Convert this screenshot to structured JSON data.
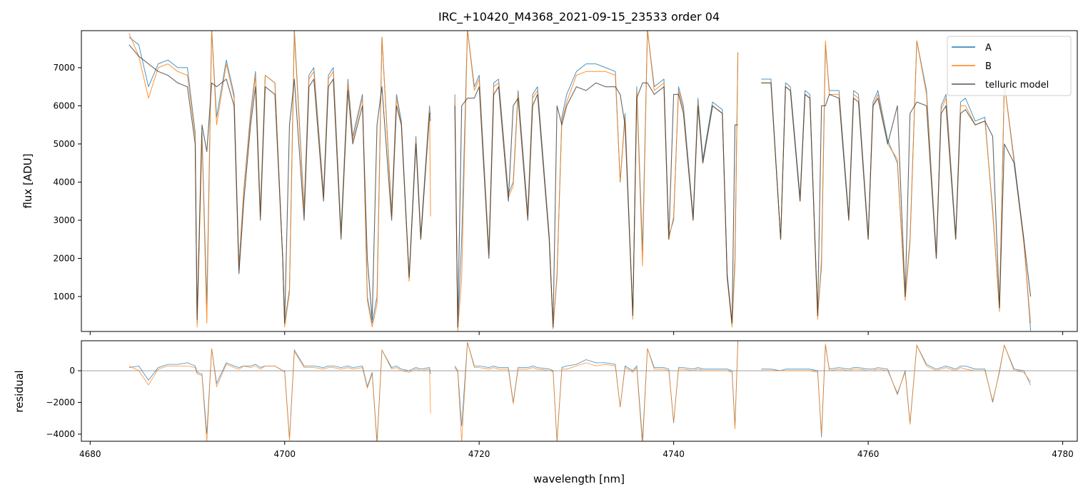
{
  "chart_data": [
    {
      "type": "line",
      "title": "IRC_+10420_M4368_2021-09-15_23533  order 04",
      "xlabel": "",
      "ylabel": "flux [ADU]",
      "xlim": [
        4679.1,
        4781.5
      ],
      "ylim": [
        84,
        7970
      ],
      "xticks": [
        4680,
        4700,
        4720,
        4740,
        4760,
        4780
      ],
      "yticks": [
        1000,
        2000,
        3000,
        4000,
        5000,
        6000,
        7000
      ],
      "grid": false,
      "legend_placement": "top-right",
      "x": [
        4684.0,
        4685.0,
        4686.0,
        4687.0,
        4688.0,
        4689.0,
        4690.0,
        4690.8,
        4691.0,
        4691.5,
        4692.0,
        4692.5,
        4693.0,
        4694.0,
        4694.8,
        4695.3,
        4695.8,
        4696.5,
        4697.0,
        4697.5,
        4698.0,
        4699.0,
        4699.8,
        4700.0,
        4700.5,
        4701.0,
        4702.0,
        4702.5,
        4703.0,
        4704.0,
        4704.5,
        4705.0,
        4705.8,
        4706.5,
        4707.0,
        4708.0,
        4708.5,
        4709.0,
        4709.5,
        4710.0,
        4711.0,
        4711.5,
        4712.0,
        4712.8,
        4713.5,
        4714.0,
        4714.9,
        4715.0,
        null,
        4717.5,
        4717.8,
        4718.2,
        4718.8,
        4719.5,
        4720.0,
        4721.0,
        4721.5,
        4722.0,
        4723.0,
        4723.5,
        4724.0,
        4725.0,
        4725.5,
        4726.0,
        4727.2,
        4727.6,
        4728.0,
        4728.5,
        4729.0,
        4730.0,
        4731.0,
        4732.0,
        4733.0,
        4734.0,
        4734.5,
        4735.0,
        4735.8,
        4736.2,
        4736.8,
        4737.3,
        4738.0,
        4739.0,
        4739.5,
        4740.0,
        4740.5,
        4741.0,
        4742.0,
        4742.5,
        4743.0,
        4744.0,
        4745.0,
        4745.5,
        4746.0,
        4746.3,
        4746.6,
        null,
        4749.0,
        4750.0,
        4751.0,
        4751.5,
        4752.0,
        4753.0,
        4753.5,
        4754.0,
        4754.8,
        4755.2,
        4755.6,
        4756.0,
        4757.0,
        4758.0,
        4758.5,
        4759.0,
        4760.0,
        4760.5,
        4761.0,
        4762.0,
        4763.0,
        4763.8,
        4764.3,
        4765.0,
        4766.0,
        4767.0,
        4767.5,
        4768.0,
        4769.0,
        4769.5,
        4770.0,
        4771.0,
        4772.0,
        4772.8,
        4773.5,
        4774.0,
        4775.0,
        4776.0,
        4776.7
      ],
      "series": [
        {
          "name": "A",
          "color": "#1f77b4",
          "values": [
            7800,
            7600,
            6500,
            7100,
            7200,
            7000,
            7000,
            5300,
            300,
            5300,
            800,
            8000,
            5700,
            7200,
            6300,
            1800,
            3800,
            5800,
            6900,
            3200,
            6800,
            6600,
            2000,
            300,
            1200,
            8000,
            3300,
            6800,
            7000,
            3700,
            6800,
            7000,
            2700,
            6700,
            5200,
            6300,
            1000,
            300,
            1000,
            7800,
            3200,
            6300,
            5600,
            1500,
            5200,
            2600,
            6000,
            5600,
            null,
            6300,
            200,
            2500,
            8000,
            6500,
            6800,
            2200,
            6600,
            6700,
            3700,
            4000,
            6400,
            3200,
            6300,
            6500,
            2600,
            200,
            1500,
            5700,
            6300,
            6900,
            7100,
            7100,
            7000,
            6900,
            4000,
            5800,
            500,
            6500,
            2200,
            8000,
            6500,
            6700,
            2600,
            3000,
            6500,
            6000,
            3100,
            6200,
            4600,
            6100,
            5900,
            1600,
            300,
            2000,
            7400,
            null,
            6700,
            6700,
            2500,
            6600,
            6500,
            3600,
            6400,
            6300,
            500,
            1800,
            7600,
            6400,
            6400,
            3100,
            6400,
            6300,
            2600,
            6100,
            6400,
            5100,
            4500,
            1000,
            2500,
            7700,
            6400,
            2100,
            6000,
            6300,
            2600,
            6100,
            6200,
            5600,
            5700,
            3200,
            700,
            6600,
            4600,
            2500,
            100
          ]
        },
        {
          "name": "B",
          "color": "#ff7f0e",
          "values": [
            7900,
            7300,
            6200,
            7000,
            7100,
            6900,
            6800,
            5200,
            200,
            5200,
            300,
            8000,
            5500,
            7100,
            6200,
            1700,
            3800,
            5700,
            6800,
            3100,
            6800,
            6600,
            2000,
            200,
            1100,
            7900,
            3200,
            6700,
            6900,
            3600,
            6700,
            6900,
            2600,
            6600,
            5100,
            6200,
            900,
            200,
            800,
            7800,
            3100,
            6200,
            5500,
            1400,
            5100,
            2500,
            5900,
            3100,
            null,
            6200,
            100,
            1500,
            8000,
            6400,
            6700,
            2100,
            6500,
            6600,
            3600,
            3900,
            6300,
            3100,
            6200,
            6400,
            2500,
            150,
            1600,
            5600,
            6100,
            6800,
            6900,
            6900,
            6900,
            6800,
            4000,
            5700,
            400,
            6400,
            1800,
            8000,
            6400,
            6600,
            2500,
            3100,
            6400,
            5900,
            3000,
            6100,
            4500,
            6000,
            5800,
            1500,
            200,
            1800,
            7400,
            null,
            6600,
            6600,
            2500,
            6500,
            6400,
            3500,
            6300,
            6200,
            400,
            2000,
            7700,
            6300,
            6300,
            3000,
            6300,
            6200,
            2500,
            6000,
            6300,
            5000,
            4600,
            900,
            2400,
            7700,
            6300,
            2000,
            5900,
            6200,
            2500,
            6000,
            6000,
            5500,
            5600,
            3300,
            600,
            6600,
            4500,
            2400,
            300
          ]
        },
        {
          "name": "telluric model",
          "color": "#333333",
          "values": [
            7600,
            7300,
            7100,
            6900,
            6800,
            6600,
            6500,
            5000,
            400,
            5500,
            4800,
            6600,
            6500,
            6700,
            6000,
            1600,
            3500,
            5500,
            6500,
            3000,
            6500,
            6300,
            2000,
            300,
            5500,
            6700,
            3000,
            6500,
            6700,
            3500,
            6500,
            6700,
            2500,
            6400,
            5000,
            6000,
            2000,
            400,
            5500,
            6500,
            3000,
            6000,
            5500,
            1500,
            5000,
            2500,
            5800,
            5800,
            null,
            6000,
            200,
            6000,
            6200,
            6200,
            6500,
            2000,
            6300,
            6500,
            3500,
            6000,
            6200,
            3000,
            6000,
            6300,
            2500,
            200,
            6000,
            5500,
            6000,
            6500,
            6400,
            6600,
            6500,
            6500,
            6300,
            5500,
            500,
            6200,
            6600,
            6600,
            6300,
            6500,
            2500,
            6300,
            6300,
            5800,
            3000,
            6000,
            4500,
            6000,
            5800,
            1500,
            300,
            5500,
            5500,
            null,
            6600,
            6600,
            2500,
            6500,
            6400,
            3500,
            6300,
            6200,
            500,
            6000,
            6000,
            6300,
            6200,
            3000,
            6200,
            6100,
            2500,
            6000,
            6200,
            5000,
            6000,
            1000,
            5800,
            6100,
            6000,
            2000,
            5800,
            6000,
            2500,
            5800,
            5900,
            5500,
            5600,
            5200,
            700,
            5000,
            4500,
            2500,
            1000
          ]
        }
      ],
      "legend": [
        "A",
        "B",
        "telluric model"
      ]
    },
    {
      "type": "line",
      "xlabel": "wavelength [nm]",
      "ylabel": "residual",
      "xlim": [
        4679.1,
        4781.5
      ],
      "ylim": [
        -4450,
        1890
      ],
      "xticks": [
        4680,
        4700,
        4720,
        4740,
        4760,
        4780
      ],
      "yticks": [
        -4000,
        -2000,
        0
      ],
      "reference_line": 0,
      "grid": false
    }
  ]
}
